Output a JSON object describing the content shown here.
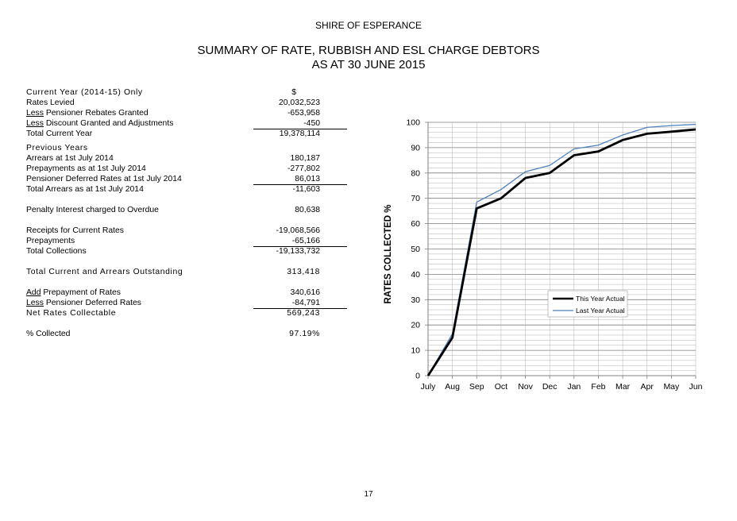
{
  "header": {
    "organisation": "SHIRE OF ESPERANCE",
    "title_line1": "SUMMARY OF RATE, RUBBISH AND ESL CHARGE DEBTORS",
    "title_line2": "AS AT 30 JUNE 2015"
  },
  "summary": {
    "current_year_heading": "Current Year (2014-15) Only",
    "currency_symbol": "$",
    "rates_levied_label": "Rates Levied",
    "rates_levied_value": "20,032,523",
    "less_word": "Less",
    "pensioner_rebates_label": "Pensioner Rebates Granted",
    "pensioner_rebates_value": "-653,958",
    "discount_label": "Discount Granted and Adjustments",
    "discount_value": "-450",
    "total_current_label": "Total Current Year",
    "total_current_value": "19,378,114",
    "previous_years_heading": "Previous Years",
    "arrears_label": "Arrears at 1st July 2014",
    "arrears_value": "180,187",
    "prepayments_1july_label": "Prepayments as at 1st July 2014",
    "prepayments_1july_value": "-277,802",
    "pensioner_deferred_label": "Pensioner Deferred Rates at 1st July 2014",
    "pensioner_deferred_value": "86,013",
    "total_arrears_label": "Total Arrears as at 1st July 2014",
    "total_arrears_value": "-11,603",
    "penalty_label": "Penalty Interest charged to Overdue",
    "penalty_value": "80,638",
    "receipts_label": "Receipts for Current Rates",
    "receipts_value": "-19,068,566",
    "prepayments_label": "Prepayments",
    "prepayments_value": "-65,166",
    "total_collections_label": "Total Collections",
    "total_collections_value": "-19,133,732",
    "total_outstanding_label": "Total Current and Arrears Outstanding",
    "total_outstanding_value": "313,418",
    "add_word": "Add",
    "add_prepayment_label": "Prepayment of Rates",
    "add_prepayment_value": "340,616",
    "less_pensioner_deferred_label": "Pensioner Deferred Rates",
    "less_pensioner_deferred_value": "-84,791",
    "net_collectable_label": "Net Rates Collectable",
    "net_collectable_value": "569,243",
    "percent_collected_label": "% Collected",
    "percent_collected_value": "97.19%"
  },
  "page_number": "17",
  "chart_data": {
    "type": "line",
    "title": "",
    "xlabel": "",
    "ylabel": "RATES COLLECTED %",
    "categories": [
      "July",
      "Aug",
      "Sep",
      "Oct",
      "Nov",
      "Dec",
      "Jan",
      "Feb",
      "Mar",
      "Apr",
      "May",
      "Jun"
    ],
    "ylim": [
      0,
      100
    ],
    "yticks": [
      "0",
      "10",
      "20",
      "30",
      "40",
      "50",
      "60",
      "70",
      "80",
      "90",
      "100"
    ],
    "grid": true,
    "legend": "middle-right",
    "series": [
      {
        "name": "This Year Actual",
        "color": "#000000",
        "values": [
          0,
          15,
          66,
          70,
          78,
          80,
          87,
          88.5,
          93,
          95.5,
          96.3,
          97.2
        ]
      },
      {
        "name": "Last Year Actual",
        "color": "#4f81bd",
        "values": [
          0,
          16.5,
          68.5,
          73.5,
          80.5,
          83,
          89.5,
          91,
          95,
          98,
          98.7,
          99.2
        ]
      }
    ]
  }
}
